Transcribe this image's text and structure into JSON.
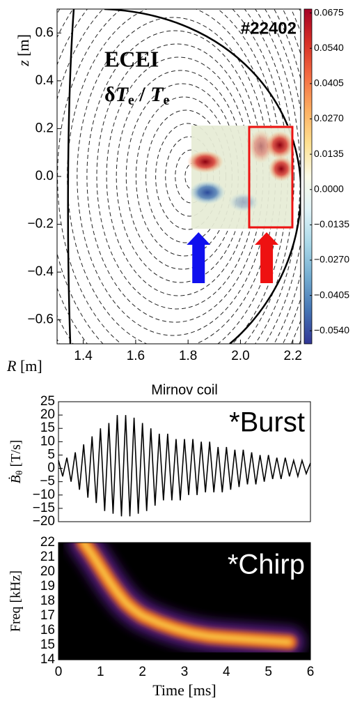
{
  "chart_data": [
    {
      "type": "contour",
      "shot": "#22402",
      "method": "ECEI",
      "ratio": [
        "δ",
        "T",
        "e",
        " / ",
        "T",
        "e"
      ],
      "ylabel": [
        "z",
        " [m]"
      ],
      "xlabel": [
        "R",
        " [m]"
      ],
      "xlim": [
        1.3,
        2.23
      ],
      "ylim": [
        -0.7,
        0.7
      ],
      "xticks": [
        1.4,
        1.6,
        1.8,
        {
          "value": 2.0,
          "label": "2.0"
        },
        2.2
      ],
      "yticks": [
        {
          "value": -0.6,
          "label": "−0.6"
        },
        {
          "value": -0.4,
          "label": "−0.4"
        },
        {
          "value": -0.2,
          "label": "−0.2"
        },
        {
          "value": 0.0,
          "label": "0.0"
        },
        0.2,
        0.4,
        0.6
      ],
      "colorbar": {
        "lim": [
          -0.059,
          0.069
        ],
        "colors": [
          "#313695",
          "#4575b4",
          "#74add1",
          "#abd9e9",
          "#e0f3f8",
          "#fbfbe8",
          "#fee090",
          "#fdae61",
          "#f46d43",
          "#d73027",
          "#a50026"
        ],
        "ticks": [
          {
            "value": -0.054,
            "label": "−0.0540"
          },
          {
            "value": -0.0405,
            "label": "−0.0405"
          },
          {
            "value": -0.027,
            "label": "−0.0270"
          },
          {
            "value": -0.0135,
            "label": "−0.0135"
          },
          {
            "value": 0.0,
            "label": "0.0000"
          },
          0.0135,
          {
            "value": 0.027,
            "label": "0.0270"
          },
          0.0405,
          {
            "value": 0.054,
            "label": "0.0540"
          },
          0.0675
        ]
      },
      "markers": [
        {
          "color": "#1010ee",
          "R": 1.84
        },
        {
          "color": "#ee1111",
          "R": 2.1
        }
      ]
    },
    {
      "type": "line",
      "title": "Mirnov coil",
      "annotation": "*Burst",
      "ylabel": [
        "Ḃ",
        "θ",
        " [T/s]"
      ],
      "xlim": [
        0,
        6
      ],
      "ylim": [
        -20,
        25
      ],
      "yticks": [
        {
          "value": -20,
          "label": "−20"
        },
        {
          "value": -15,
          "label": "−15"
        },
        {
          "value": -10,
          "label": "−10"
        },
        {
          "value": -5,
          "label": "−5"
        },
        0,
        5,
        10,
        15,
        20,
        25
      ],
      "color": "#000000",
      "x": [
        0,
        0.1,
        0.2,
        0.3,
        0.4,
        0.5,
        0.6,
        0.7,
        0.8,
        0.9,
        1.0,
        1.1,
        1.2,
        1.3,
        1.4,
        1.5,
        1.6,
        1.7,
        1.8,
        1.9,
        2.0,
        2.1,
        2.2,
        2.3,
        2.4,
        2.5,
        2.6,
        2.7,
        2.8,
        2.9,
        3.0,
        3.1,
        3.2,
        3.3,
        3.4,
        3.5,
        3.6,
        3.7,
        3.8,
        3.9,
        4.0,
        4.1,
        4.2,
        4.3,
        4.4,
        4.5,
        4.6,
        4.7,
        4.8,
        4.9,
        5.0,
        5.1,
        5.2,
        5.3,
        5.4,
        5.5,
        5.6,
        5.7,
        5.8,
        5.9,
        6.0
      ],
      "values": [
        3,
        -3,
        4,
        -5,
        6,
        -8,
        9,
        -11,
        12,
        -13,
        15,
        -16,
        17,
        -17,
        20,
        -18,
        20,
        -18,
        19,
        -17,
        17,
        -16,
        15,
        -14,
        13,
        -12,
        13,
        -12,
        11,
        -12,
        11,
        -10,
        11,
        -10,
        10,
        -9,
        10,
        -9,
        8,
        -9,
        8,
        -8,
        7,
        -7,
        7,
        -6,
        6,
        -6,
        5,
        -5,
        5,
        -4,
        4,
        -4,
        4,
        -3,
        3,
        -3,
        3,
        -2,
        2
      ]
    },
    {
      "type": "spectrogram",
      "annotation": "*Chirp",
      "ylabel": "Freq [kHz]",
      "xlabel": "Time [ms]",
      "xlim": [
        0,
        6
      ],
      "ylim": [
        14,
        22
      ],
      "xticks": [
        0,
        1,
        2,
        3,
        4,
        5,
        6
      ],
      "yticks": [
        14,
        15,
        16,
        17,
        18,
        19,
        20,
        21,
        22
      ],
      "colormap": [
        "#000000",
        "#5a1a8c",
        "#e8661a",
        "#fcd24a"
      ],
      "x": [
        0.6,
        0.8,
        1.0,
        1.2,
        1.4,
        1.6,
        1.8,
        2.0,
        2.4,
        2.8,
        3.2,
        3.6,
        4.0,
        4.5,
        5.0,
        5.5
      ],
      "values": [
        22.0,
        21.2,
        20.3,
        19.4,
        18.6,
        17.9,
        17.4,
        17.0,
        16.5,
        16.1,
        15.8,
        15.6,
        15.5,
        15.4,
        15.3,
        15.2
      ]
    }
  ]
}
